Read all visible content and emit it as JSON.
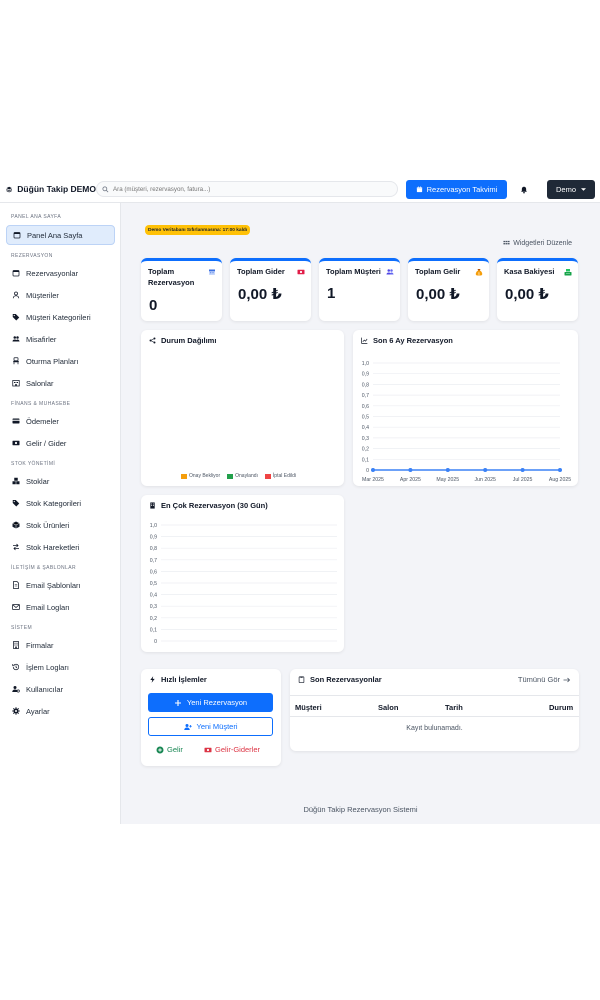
{
  "brand": {
    "title": "Düğün Takip DEMO"
  },
  "search": {
    "placeholder": "Ara (müşteri, rezervasyon, fatura...)"
  },
  "header": {
    "calendar_button": "Rezervasyon Takvimi",
    "user_menu": "Demo"
  },
  "sidebar": {
    "sections": {
      "panel": "PANEL ANA SAYFA",
      "rezervasyon": "REZERVASYON",
      "finans": "FİNANS & MUHASEBE",
      "stok": "STOK YÖNETİMİ",
      "iletisim": "İLETİŞİM & ŞABLONLAR",
      "sistem": "SİSTEM"
    },
    "items": {
      "panel_ana_sayfa": "Panel Ana Sayfa",
      "rezervasyonlar": "Rezervasyonlar",
      "musteriler": "Müşteriler",
      "musteri_kategorileri": "Müşteri Kategorileri",
      "misafirler": "Misafirler",
      "oturma_planlari": "Oturma Planları",
      "salonlar": "Salonlar",
      "odemeler": "Ödemeler",
      "gelir_gider": "Gelir / Gider",
      "stoklar": "Stoklar",
      "stok_kategorileri": "Stok Kategorileri",
      "stok_urunleri": "Stok Ürünleri",
      "stok_hareketleri": "Stok Hareketleri",
      "email_sablonlari": "Email Şablonları",
      "email_loglari": "Email Logları",
      "firmalar": "Firmalar",
      "islem_loglari": "İşlem Logları",
      "kullanicilar": "Kullanıcılar",
      "ayarlar": "Ayarlar"
    }
  },
  "main": {
    "demo_notice": "Demo Veritabanı Sıfırlanmasına: 17:00 kaldı",
    "widget_edit": "Widgetleri Düzenle",
    "stats": [
      {
        "label": "Toplam Rezervasyon",
        "value": "0",
        "accent": "#0d6efd",
        "icon": "calendar-icon"
      },
      {
        "label": "Toplam Gider",
        "value": "0,00 ₺",
        "accent": "#dc3545",
        "icon": "money-bill-icon"
      },
      {
        "label": "Toplam Müşteri",
        "value": "1",
        "accent": "#0d6efd",
        "icon": "users-icon"
      },
      {
        "label": "Toplam Gelir",
        "value": "0,00 ₺",
        "accent": "#f59e0b",
        "icon": "money-bag-icon"
      },
      {
        "label": "Kasa Bakiyesi",
        "value": "0,00 ₺",
        "accent": "#22c55e",
        "icon": "cash-register-icon"
      }
    ],
    "status_chart": {
      "title": "Durum Dağılımı",
      "legend": [
        "Onay Bekliyor",
        "Onaylandı",
        "İptal Edildi"
      ],
      "legend_colors": [
        "#f59e0b",
        "#22a04b",
        "#ef4444"
      ]
    },
    "quick_actions": {
      "title": "Hızlı İşlemler",
      "new_reservation": "Yeni Rezervasyon",
      "new_customer": "Yeni Müşteri",
      "income": "Gelir",
      "income_expense": "Gelir-Giderler"
    },
    "recent": {
      "title": "Son Rezervasyonlar",
      "view_all": "Tümünü Gör",
      "columns": [
        "Müşteri",
        "Salon",
        "Tarih",
        "Durum"
      ],
      "empty": "Kayıt bulunamadı."
    },
    "footer": "Düğün Takip Rezervasyon Sistemi"
  },
  "chart_data": [
    {
      "type": "line",
      "title": "Son 6 Ay Rezervasyon",
      "categories": [
        "Mar 2025",
        "Apr 2025",
        "May 2025",
        "Jun 2025",
        "Jul 2025",
        "Aug 2025"
      ],
      "series": [
        {
          "values": [
            0,
            0,
            0,
            0,
            0,
            0
          ]
        }
      ],
      "ylim": [
        0,
        1
      ],
      "yticks": [
        "1,0",
        "0,9",
        "0,8",
        "0,7",
        "0,6",
        "0,5",
        "0,4",
        "0,3",
        "0,2",
        "0,1",
        "0"
      ],
      "grid": true,
      "color": "#3b82f6"
    },
    {
      "type": "bar",
      "title": "En Çok Rezervasyon (30 Gün)",
      "categories": [],
      "values": [],
      "ylim": [
        0,
        1
      ],
      "yticks": [
        "1,0",
        "0,9",
        "0,8",
        "0,7",
        "0,6",
        "0,5",
        "0,4",
        "0,3",
        "0,2",
        "0,1",
        "0"
      ],
      "grid": true
    }
  ]
}
